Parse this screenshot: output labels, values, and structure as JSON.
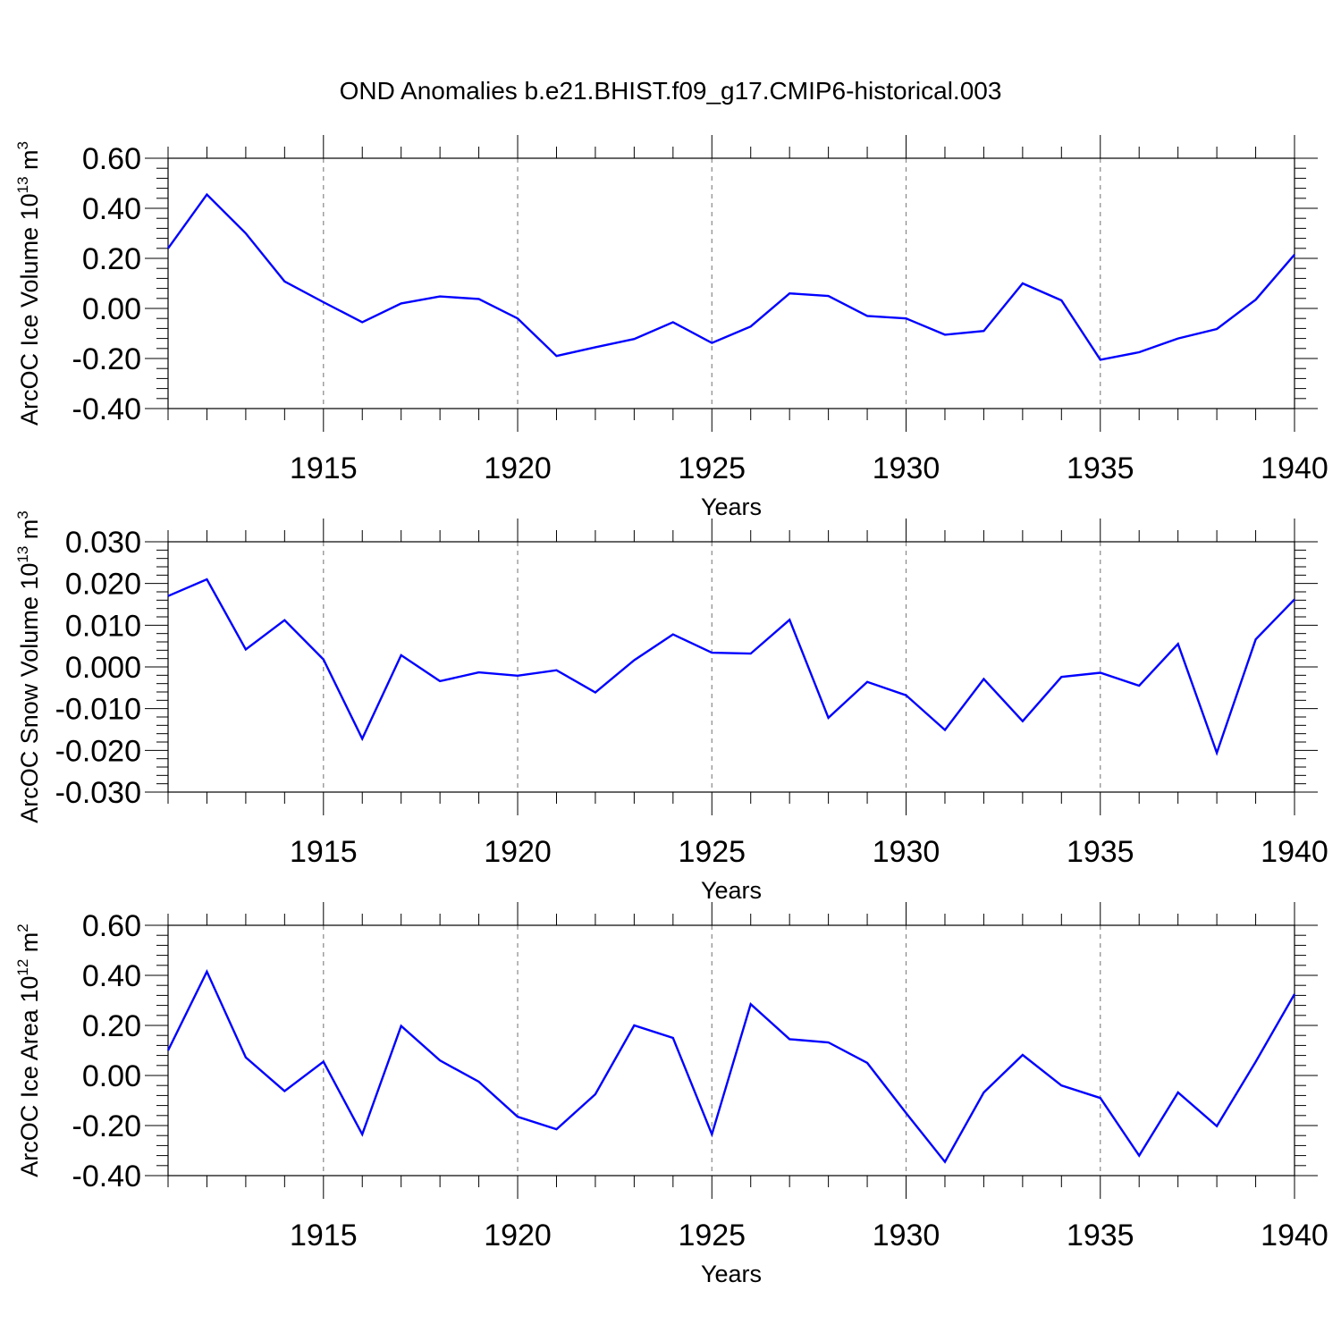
{
  "chart_data": {
    "title": "OND Anomalies b.e21.BHIST.f09_g17.CMIP6-historical.003",
    "panels": [
      {
        "type": "line",
        "ylabel": "ArcOC Ice Volume 10",
        "ylabel_exp": "13",
        "ylabel_unit": " m",
        "ylabel_unit_exp": "3",
        "xlabel": "Years",
        "ylim": [
          -0.4,
          0.6
        ],
        "yticks": [
          0.6,
          0.4,
          0.2,
          0.0,
          -0.2,
          -0.4
        ],
        "ytick_labels": [
          "0.60",
          "0.40",
          "0.20",
          "0.00",
          "-0.20",
          "-0.40"
        ],
        "xlim": [
          1911,
          1940
        ],
        "xticks": [
          1915,
          1920,
          1925,
          1930,
          1935,
          1940
        ],
        "xtick_labels": [
          "1915",
          "1920",
          "1925",
          "1930",
          "1935",
          "1940"
        ],
        "series": [
          {
            "name": "ice volume",
            "color": "#0000ff",
            "x": [
              1911,
              1912,
              1913,
              1914,
              1915,
              1916,
              1917,
              1918,
              1919,
              1920,
              1921,
              1922,
              1923,
              1924,
              1925,
              1926,
              1927,
              1928,
              1929,
              1930,
              1931,
              1932,
              1933,
              1934,
              1935,
              1936,
              1937,
              1938,
              1939,
              1940
            ],
            "values": [
              0.24,
              0.455,
              0.3,
              0.108,
              0.025,
              -0.055,
              0.02,
              0.048,
              0.038,
              -0.04,
              -0.19,
              -0.155,
              -0.122,
              -0.055,
              -0.138,
              -0.072,
              0.06,
              0.05,
              -0.03,
              -0.04,
              -0.105,
              -0.09,
              0.1,
              0.032,
              -0.205,
              -0.175,
              -0.12,
              -0.082,
              0.035,
              0.215
            ]
          }
        ]
      },
      {
        "type": "line",
        "ylabel": "ArcOC Snow Volume 10",
        "ylabel_exp": "13",
        "ylabel_unit": " m",
        "ylabel_unit_exp": "3",
        "xlabel": "Years",
        "ylim": [
          -0.03,
          0.03
        ],
        "yticks": [
          0.03,
          0.02,
          0.01,
          0.0,
          -0.01,
          -0.02,
          -0.03
        ],
        "ytick_labels": [
          "0.030",
          "0.020",
          "0.010",
          "0.000",
          "-0.010",
          "-0.020",
          "-0.030"
        ],
        "xlim": [
          1911,
          1940
        ],
        "xticks": [
          1915,
          1920,
          1925,
          1930,
          1935,
          1940
        ],
        "xtick_labels": [
          "1915",
          "1920",
          "1925",
          "1930",
          "1935",
          "1940"
        ],
        "series": [
          {
            "name": "snow volume",
            "color": "#0000ff",
            "x": [
              1911,
              1912,
              1913,
              1914,
              1915,
              1916,
              1917,
              1918,
              1919,
              1920,
              1921,
              1922,
              1923,
              1924,
              1925,
              1926,
              1927,
              1928,
              1929,
              1930,
              1931,
              1932,
              1933,
              1934,
              1935,
              1936,
              1937,
              1938,
              1939,
              1940
            ],
            "values": [
              0.017,
              0.021,
              0.0042,
              0.0112,
              0.0018,
              -0.0172,
              0.0028,
              -0.0034,
              -0.0013,
              -0.0021,
              -0.0008,
              -0.0061,
              0.0016,
              0.0078,
              0.0034,
              0.0032,
              0.0113,
              -0.0122,
              -0.0036,
              -0.0068,
              -0.0151,
              -0.0029,
              -0.013,
              -0.0024,
              -0.0014,
              -0.0045,
              0.0055,
              -0.0206,
              0.0066,
              0.0162
            ]
          }
        ]
      },
      {
        "type": "line",
        "ylabel": "ArcOC Ice Area 10",
        "ylabel_exp": "12",
        "ylabel_unit": " m",
        "ylabel_unit_exp": "2",
        "xlabel": "Years",
        "ylim": [
          -0.4,
          0.6
        ],
        "yticks": [
          0.6,
          0.4,
          0.2,
          0.0,
          -0.2,
          -0.4
        ],
        "ytick_labels": [
          "0.60",
          "0.40",
          "0.20",
          "0.00",
          "-0.20",
          "-0.40"
        ],
        "xlim": [
          1911,
          1940
        ],
        "xticks": [
          1915,
          1920,
          1925,
          1930,
          1935,
          1940
        ],
        "xtick_labels": [
          "1915",
          "1920",
          "1925",
          "1930",
          "1935",
          "1940"
        ],
        "series": [
          {
            "name": "ice area",
            "color": "#0000ff",
            "x": [
              1911,
              1912,
              1913,
              1914,
              1915,
              1916,
              1917,
              1918,
              1919,
              1920,
              1921,
              1922,
              1923,
              1924,
              1925,
              1926,
              1927,
              1928,
              1929,
              1930,
              1931,
              1932,
              1933,
              1934,
              1935,
              1936,
              1937,
              1938,
              1939,
              1940
            ],
            "values": [
              0.1,
              0.415,
              0.072,
              -0.062,
              0.055,
              -0.235,
              0.198,
              0.06,
              -0.025,
              -0.165,
              -0.215,
              -0.075,
              0.2,
              0.15,
              -0.235,
              0.285,
              0.145,
              0.132,
              0.05,
              -0.15,
              -0.345,
              -0.068,
              0.082,
              -0.04,
              -0.09,
              -0.32,
              -0.068,
              -0.202,
              0.055,
              0.325
            ]
          }
        ]
      }
    ]
  }
}
